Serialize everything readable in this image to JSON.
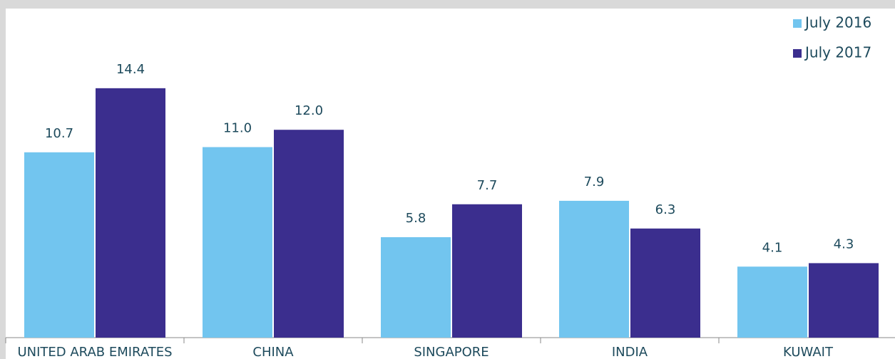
{
  "chart_data": {
    "type": "bar",
    "categories": [
      "UNITED ARAB EMIRATES",
      "CHINA",
      "SINGAPORE",
      "INDIA",
      "KUWAIT"
    ],
    "series": [
      {
        "name": "July 2016",
        "color": "#72c5ef",
        "values": [
          10.7,
          11,
          5.8,
          7.9,
          4.1
        ],
        "value_labels": [
          "10.7",
          "11.0",
          "5.8",
          "7.9",
          "4.1"
        ]
      },
      {
        "name": "July 2017",
        "color": "#3b2e8e",
        "values": [
          14.4,
          12,
          7.7,
          6.3,
          4.3
        ],
        "value_labels": [
          "14.4",
          "12.0",
          "7.7",
          "6.3",
          "4.3"
        ]
      }
    ],
    "ylim": [
      0,
      19
    ],
    "legend": "top-right"
  }
}
